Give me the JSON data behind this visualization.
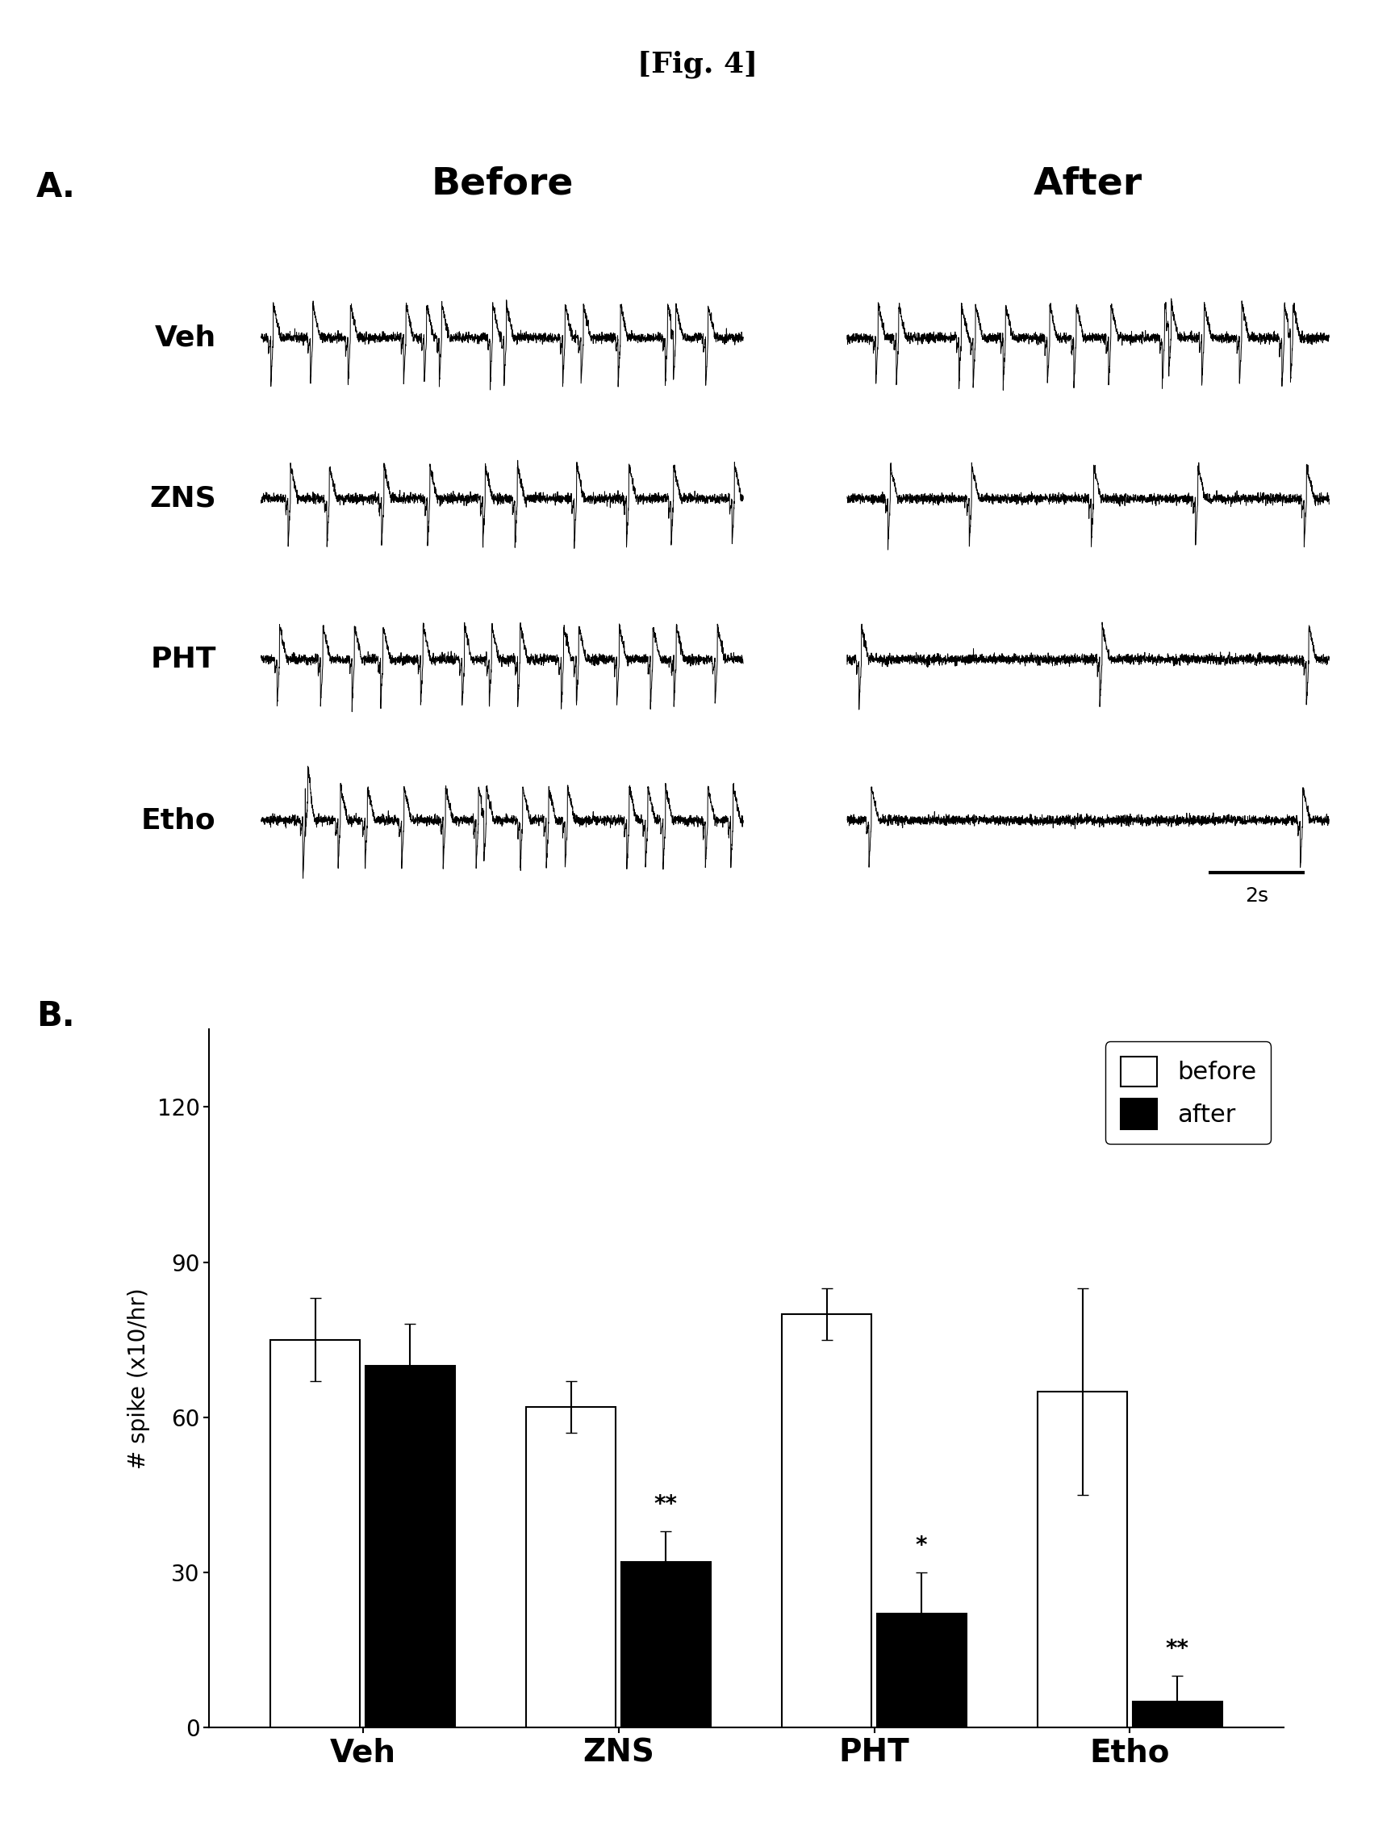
{
  "fig_title": "[Fig. 4]",
  "panel_A_label": "A.",
  "panel_B_label": "B.",
  "before_label": "Before",
  "after_label": "After",
  "trace_labels": [
    "Veh",
    "ZNS",
    "PHT",
    "Etho"
  ],
  "scale_label": "2s",
  "bar_categories": [
    "Veh",
    "ZNS",
    "PHT",
    "Etho"
  ],
  "before_values": [
    75,
    62,
    80,
    65
  ],
  "after_values": [
    70,
    32,
    22,
    5
  ],
  "before_errors": [
    8,
    5,
    5,
    20
  ],
  "after_errors": [
    8,
    6,
    8,
    5
  ],
  "ylabel": "# spike (x10/hr)",
  "yticks": [
    0,
    30,
    60,
    90,
    120
  ],
  "legend_before": "before",
  "legend_after": "after",
  "sig_labels": [
    "",
    "**",
    "*",
    "**"
  ],
  "bar_width": 0.35,
  "background_color": "#ffffff",
  "bar_color_before": "#ffffff",
  "bar_color_after": "#000000",
  "bar_edgecolor": "#000000",
  "veh_before_spike_freq": 14,
  "veh_after_spike_freq": 14,
  "zns_before_spike_freq": 10,
  "zns_after_spike_freq": 5,
  "pht_before_spike_freq": 14,
  "pht_after_spike_freq": 3,
  "etho_before_spike_freq": 16,
  "etho_after_spike_freq": 2,
  "title_fontsize": 26,
  "header_fontsize": 34,
  "label_fontsize": 30,
  "trace_label_fontsize": 26,
  "bar_xlabel_fontsize": 28,
  "bar_ylabel_fontsize": 20,
  "bar_tick_fontsize": 20,
  "legend_fontsize": 22,
  "sig_fontsize": 20
}
